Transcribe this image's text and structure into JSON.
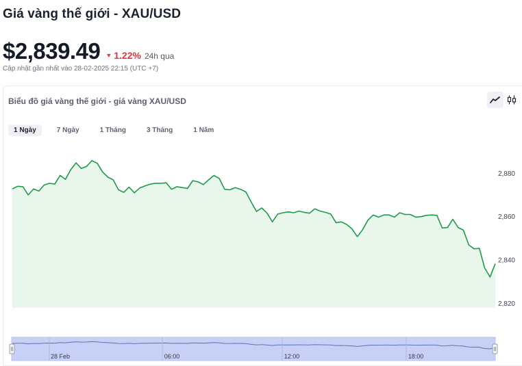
{
  "header": {
    "title": "Giá vàng thế giới - XAU/USD",
    "price": "$2,839.49",
    "change_percent": "1.22%",
    "change_period": "24h qua",
    "change_direction": "down",
    "updated": "Cập nhật gần nhất vào 28-02-2025 22:15 (UTC +7)"
  },
  "chart_panel": {
    "title": "Biểu đồ giá vàng thế giới - giá vàng XAU/USD",
    "modes": [
      {
        "name": "line-mode",
        "icon": "line-chart-icon",
        "active": true
      },
      {
        "name": "candle-mode",
        "icon": "candlestick-icon",
        "active": false
      }
    ],
    "tabs": [
      {
        "label": "1 Ngày",
        "active": true
      },
      {
        "label": "7 Ngày",
        "active": false
      },
      {
        "label": "1 Tháng",
        "active": false
      },
      {
        "label": "3 Tháng",
        "active": false
      },
      {
        "label": "1 Năm",
        "active": false
      }
    ]
  },
  "colors": {
    "line": "#1e9b48",
    "area": "#e9f6ec",
    "down": "#e2333e",
    "navigator_fill": "#c8d1f5"
  },
  "chart_data": {
    "type": "area",
    "title": "",
    "xlabel": "",
    "ylabel": "",
    "ylim": [
      2818,
      2893
    ],
    "y_ticks": [
      2820,
      2840,
      2860,
      2880
    ],
    "y_tick_labels": [
      "2,820",
      "2,840",
      "2,860",
      "2,880"
    ],
    "navigator_labels": [
      "28 Feb",
      "06:00",
      "12:00",
      "18:00"
    ],
    "series": [
      {
        "values": [
          2872.8,
          2874,
          2873.8,
          2870,
          2872.8,
          2871.8,
          2874.6,
          2875.4,
          2875,
          2879,
          2877.2,
          2881.6,
          2884.8,
          2882.2,
          2883.2,
          2885.8,
          2884.6,
          2880.6,
          2878.2,
          2877,
          2872.4,
          2871.2,
          2873.6,
          2871,
          2873.2,
          2874.2,
          2875,
          2875.4,
          2875.4,
          2875.6,
          2872.6,
          2873.8,
          2873.4,
          2873,
          2876.6,
          2876,
          2874.8,
          2877,
          2879,
          2877.6,
          2872.6,
          2872.4,
          2873.4,
          2872.6,
          2871.4,
          2866.8,
          2862.4,
          2864,
          2861.6,
          2857.6,
          2861.2,
          2861.8,
          2862.2,
          2861.8,
          2862.6,
          2862,
          2861.6,
          2863.6,
          2862.6,
          2862,
          2861.2,
          2857.2,
          2857.6,
          2856.4,
          2854.4,
          2850.8,
          2854,
          2858.4,
          2860.8,
          2859.8,
          2860.8,
          2860.8,
          2859.8,
          2861.8,
          2861,
          2861,
          2859.8,
          2860,
          2860.6,
          2860.8,
          2860.6,
          2854.8,
          2855,
          2858.8,
          2855,
          2853.8,
          2847,
          2845.2,
          2845.4,
          2836.4,
          2832.2,
          2838.4
        ]
      }
    ],
    "grid": false,
    "legend": "none"
  }
}
